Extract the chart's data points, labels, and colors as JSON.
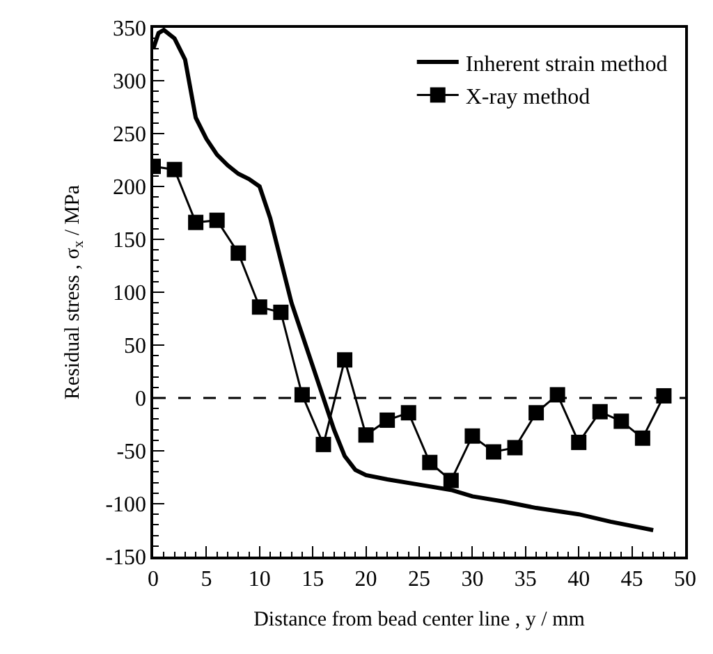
{
  "chart_data": {
    "type": "line",
    "xlabel": "Distance from bead center line , y / mm",
    "ylabel": "Residual stress , σ$_{x}$ / MPa",
    "xlim": [
      0,
      50
    ],
    "xticks": [
      0,
      5,
      10,
      15,
      20,
      25,
      30,
      35,
      40,
      45,
      50
    ],
    "ylim": [
      -150,
      350
    ],
    "yticks": [
      -150,
      -100,
      -50,
      0,
      50,
      100,
      150,
      200,
      250,
      300,
      350
    ],
    "legend": "top right",
    "ref_lines": [
      {
        "axis": "y",
        "value": 0,
        "color": "#000000",
        "line_style": "dashed"
      }
    ],
    "series": [
      {
        "name": "Inherent strain method",
        "color": "#000000",
        "marker": "none",
        "line_style": "solid",
        "x": [
          0,
          0.5,
          1,
          2,
          3,
          4,
          5,
          6,
          7,
          8,
          9,
          10,
          11,
          12,
          13,
          14,
          15,
          16,
          17,
          18,
          19,
          20,
          22,
          25,
          28,
          30,
          33,
          36,
          40,
          43,
          47
        ],
        "values": [
          330,
          345,
          348,
          340,
          320,
          265,
          245,
          230,
          220,
          212,
          207,
          200,
          170,
          130,
          90,
          60,
          30,
          0,
          -30,
          -55,
          -68,
          -73,
          -77,
          -82,
          -87,
          -93,
          -98,
          -104,
          -110,
          -117,
          -125
        ]
      },
      {
        "name": "X-ray method",
        "color": "#000000",
        "marker": "square",
        "line_style": "solid",
        "x": [
          0,
          2,
          4,
          6,
          8,
          10,
          12,
          14,
          16,
          18,
          20,
          22,
          24,
          26,
          28,
          30,
          32,
          34,
          36,
          38,
          40,
          42,
          44,
          46,
          48
        ],
        "values": [
          219,
          216,
          166,
          168,
          137,
          86,
          81,
          3,
          -44,
          36,
          -35,
          -21,
          -14,
          -61,
          -78,
          -36,
          -51,
          -47,
          -14,
          3,
          -42,
          -13,
          -22,
          -38,
          2
        ]
      }
    ]
  }
}
